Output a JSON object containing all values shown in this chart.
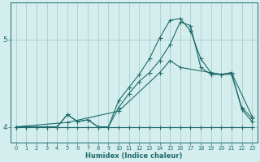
{
  "xlabel": "Humidex (Indice chaleur)",
  "bg_color": "#d4eded",
  "grid_color": "#9fc8c8",
  "line_color": "#1e6b6b",
  "xlim": [
    -0.5,
    23.5
  ],
  "ylim": [
    3.82,
    5.42
  ],
  "yticks": [
    4,
    5
  ],
  "xticks": [
    0,
    1,
    2,
    3,
    4,
    5,
    6,
    7,
    8,
    9,
    10,
    11,
    12,
    13,
    14,
    15,
    16,
    17,
    18,
    19,
    20,
    21,
    22,
    23
  ],
  "line1_x": [
    0,
    1,
    2,
    3,
    4,
    5,
    6,
    7,
    8,
    9,
    10,
    11,
    12,
    13,
    14,
    15,
    16,
    17,
    18,
    19,
    20,
    21,
    22,
    23
  ],
  "line1_y": [
    4.0,
    4.0,
    4.0,
    4.0,
    4.0,
    4.14,
    4.06,
    4.08,
    4.0,
    4.0,
    4.3,
    4.45,
    4.6,
    4.78,
    5.02,
    5.22,
    5.24,
    5.1,
    4.78,
    4.62,
    4.6,
    4.6,
    4.22,
    4.1
  ],
  "line2_x": [
    0,
    1,
    2,
    3,
    4,
    5,
    6,
    7,
    8,
    9,
    10,
    11,
    12,
    13,
    14,
    15,
    16,
    17,
    18,
    19,
    20,
    21,
    22,
    23
  ],
  "line2_y": [
    4.0,
    4.0,
    4.0,
    4.0,
    4.0,
    4.14,
    4.06,
    4.08,
    4.0,
    4.0,
    4.22,
    4.38,
    4.52,
    4.62,
    4.76,
    4.94,
    5.2,
    5.16,
    4.68,
    4.6,
    4.6,
    4.62,
    4.2,
    4.06
  ],
  "line3_x": [
    0,
    5,
    10,
    14,
    15,
    16,
    20,
    21,
    23
  ],
  "line3_y": [
    4.0,
    4.05,
    4.18,
    4.62,
    4.76,
    4.68,
    4.6,
    4.62,
    4.12
  ],
  "line4_x": [
    0,
    1,
    2,
    3,
    4,
    5,
    6,
    7,
    8,
    9,
    10,
    11,
    12,
    13,
    14,
    15,
    16,
    17,
    18,
    19,
    20,
    21,
    22,
    23
  ],
  "line4_y": [
    4.0,
    4.0,
    4.0,
    4.0,
    4.0,
    4.0,
    4.0,
    4.0,
    4.0,
    4.0,
    4.0,
    4.0,
    4.0,
    4.0,
    4.0,
    4.0,
    4.0,
    4.0,
    4.0,
    4.0,
    4.0,
    4.0,
    4.0,
    4.0
  ]
}
